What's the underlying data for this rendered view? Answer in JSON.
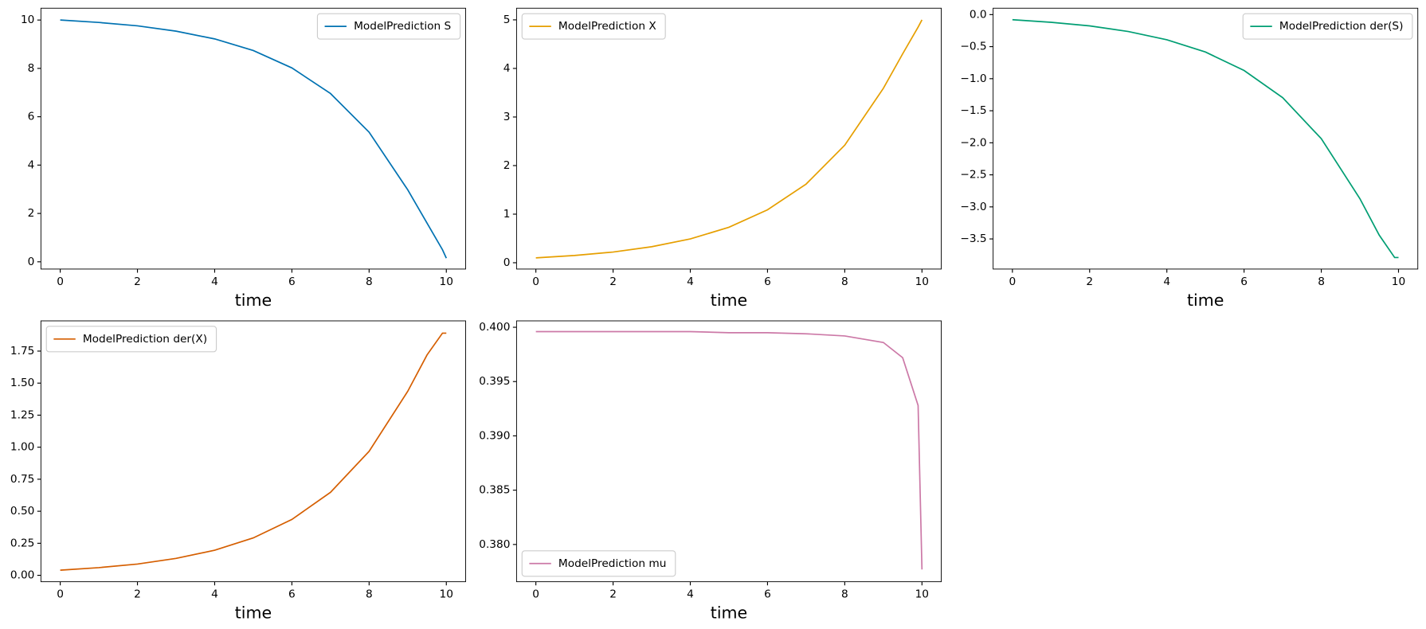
{
  "chart_data": [
    {
      "type": "line",
      "xlabel": "time",
      "legend": "upper right",
      "x": [
        0,
        1,
        2,
        3,
        4,
        5,
        6,
        7,
        8,
        9,
        9.5,
        9.9,
        10
      ],
      "series": [
        {
          "name": "ModelPrediction S",
          "color": "#0072b2",
          "values": [
            10,
            9.9,
            9.76,
            9.54,
            9.22,
            8.74,
            8.02,
            6.96,
            5.36,
            2.98,
            1.6,
            0.5,
            0.15
          ]
        }
      ],
      "xlim": [
        -0.5,
        10.5
      ],
      "ylim": [
        -0.3,
        10.49
      ],
      "xticks": [
        0,
        2,
        4,
        6,
        8,
        10
      ],
      "yticks": [
        0,
        2,
        4,
        6,
        8,
        10
      ]
    },
    {
      "type": "line",
      "xlabel": "time",
      "legend": "upper left",
      "x": [
        0,
        1,
        2,
        3,
        4,
        5,
        6,
        7,
        8,
        9,
        9.5,
        9.9,
        10
      ],
      "series": [
        {
          "name": "ModelPrediction X",
          "color": "#e69f00",
          "values": [
            0.1,
            0.15,
            0.22,
            0.33,
            0.49,
            0.73,
            1.09,
            1.62,
            2.42,
            3.59,
            4.3,
            4.85,
            5.0
          ]
        }
      ],
      "xlim": [
        -0.5,
        10.5
      ],
      "ylim": [
        -0.13,
        5.24
      ],
      "xticks": [
        0,
        2,
        4,
        6,
        8,
        10
      ],
      "yticks": [
        0,
        1,
        2,
        3,
        4,
        5
      ]
    },
    {
      "type": "line",
      "xlabel": "time",
      "legend": "upper right",
      "x": [
        0,
        1,
        2,
        3,
        4,
        5,
        6,
        7,
        8,
        9,
        9.5,
        9.9,
        10
      ],
      "series": [
        {
          "name": "ModelPrediction der(S)",
          "color": "#009e73",
          "values": [
            -0.08,
            -0.12,
            -0.176,
            -0.264,
            -0.392,
            -0.584,
            -0.872,
            -1.296,
            -1.936,
            -2.872,
            -3.44,
            -3.79,
            -3.79
          ]
        }
      ],
      "xlim": [
        -0.5,
        10.5
      ],
      "ylim": [
        -3.97,
        0.1
      ],
      "xticks": [
        0,
        2,
        4,
        6,
        8,
        10
      ],
      "yticks": [
        {
          "value": 0,
          "label": "0.0"
        },
        {
          "value": -0.5,
          "label": "−0.5"
        },
        {
          "value": -1,
          "label": "−1.0"
        },
        {
          "value": -1.5,
          "label": "−1.5"
        },
        {
          "value": -2,
          "label": "−2.0"
        },
        {
          "value": -2.5,
          "label": "−2.5"
        },
        {
          "value": -3,
          "label": "−3.0"
        },
        {
          "value": -3.5,
          "label": "−3.5"
        }
      ]
    },
    {
      "type": "line",
      "xlabel": "time",
      "legend": "upper left",
      "x": [
        0,
        1,
        2,
        3,
        4,
        5,
        6,
        7,
        8,
        9,
        9.5,
        9.9,
        10
      ],
      "series": [
        {
          "name": "ModelPrediction der(X)",
          "color": "#d55e00",
          "values": [
            0.04,
            0.06,
            0.088,
            0.132,
            0.196,
            0.292,
            0.436,
            0.648,
            0.968,
            1.436,
            1.72,
            1.89,
            1.89
          ]
        }
      ],
      "xlim": [
        -0.5,
        10.5
      ],
      "ylim": [
        -0.05,
        1.986
      ],
      "xticks": [
        0,
        2,
        4,
        6,
        8,
        10
      ],
      "yticks": [
        {
          "value": 0,
          "label": "0.00"
        },
        {
          "value": 0.25,
          "label": "0.25"
        },
        {
          "value": 0.5,
          "label": "0.50"
        },
        {
          "value": 0.75,
          "label": "0.75"
        },
        {
          "value": 1,
          "label": "1.00"
        },
        {
          "value": 1.25,
          "label": "1.25"
        },
        {
          "value": 1.5,
          "label": "1.50"
        },
        {
          "value": 1.75,
          "label": "1.75"
        }
      ]
    },
    {
      "type": "line",
      "xlabel": "time",
      "legend": "lower left",
      "x": [
        0,
        1,
        2,
        3,
        4,
        5,
        6,
        7,
        8,
        9,
        9.5,
        9.9,
        10
      ],
      "series": [
        {
          "name": "ModelPrediction mu",
          "color": "#cc79a7",
          "values": [
            0.3996,
            0.3996,
            0.3996,
            0.3996,
            0.3996,
            0.3995,
            0.3995,
            0.3994,
            0.3992,
            0.3986,
            0.3972,
            0.3928,
            0.3777
          ]
        }
      ],
      "xlim": [
        -0.5,
        10.5
      ],
      "ylim": [
        0.37657,
        0.40059
      ],
      "xticks": [
        0,
        2,
        4,
        6,
        8,
        10
      ],
      "yticks": [
        {
          "value": 0.38,
          "label": "0.380"
        },
        {
          "value": 0.385,
          "label": "0.385"
        },
        {
          "value": 0.39,
          "label": "0.390"
        },
        {
          "value": 0.395,
          "label": "0.395"
        },
        {
          "value": 0.4,
          "label": "0.400"
        }
      ]
    }
  ]
}
